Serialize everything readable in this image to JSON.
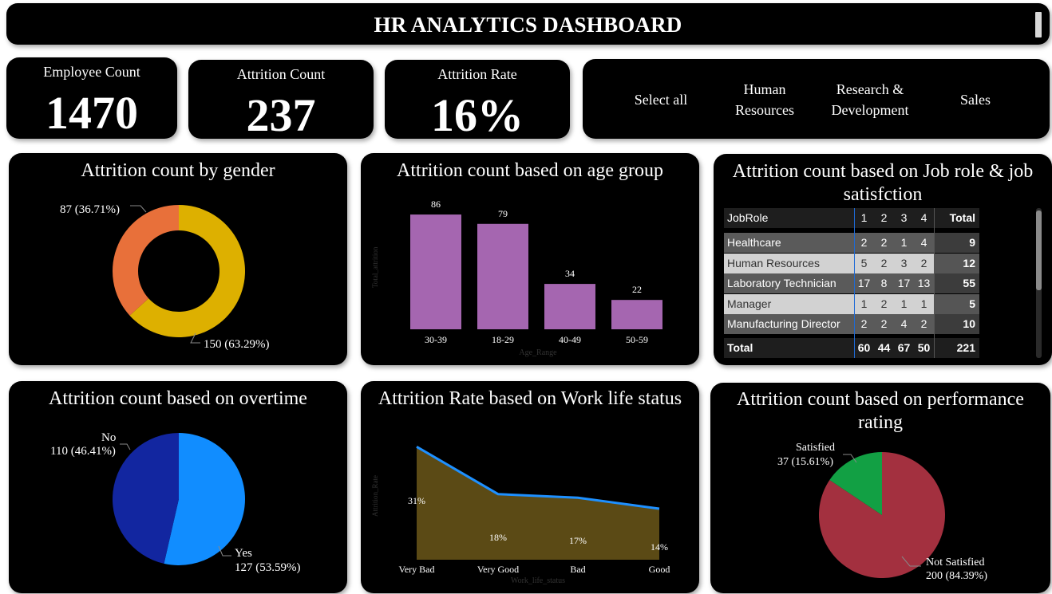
{
  "header": {
    "title": "HR ANALYTICS DASHBOARD"
  },
  "kpis": [
    {
      "label": "Employee Count",
      "value": "1470"
    },
    {
      "label": "Attrition Count",
      "value": "237"
    },
    {
      "label": "Attrition Rate",
      "value": "16%"
    }
  ],
  "slicer": {
    "items": [
      "Select all",
      "Human\nResources",
      "Research &\nDevelopment",
      "Sales"
    ]
  },
  "gender": {
    "title": "Attrition count by gender",
    "labels": [
      "87 (36.71%)",
      "150 (63.29%)"
    ]
  },
  "age": {
    "title": "Attrition count based on age group",
    "xlabel": "Age_Range",
    "ylabel": "Total_attrition"
  },
  "jobrole": {
    "title": "Attrition count based on Job role & job satisfction",
    "headers": [
      "JobRole",
      "1",
      "2",
      "3",
      "4",
      "Total"
    ],
    "rows": [
      [
        "Healthcare Representative",
        "2",
        "2",
        "1",
        "4",
        "9"
      ],
      [
        "Human Resources",
        "5",
        "2",
        "3",
        "2",
        "12"
      ],
      [
        "Laboratory Technician",
        "17",
        "8",
        "17",
        "13",
        "55"
      ],
      [
        "Manager",
        "1",
        "2",
        "1",
        "1",
        "5"
      ],
      [
        "Manufacturing Director",
        "2",
        "2",
        "4",
        "2",
        "10"
      ]
    ],
    "total": [
      "Total",
      "60",
      "44",
      "67",
      "50",
      "221"
    ]
  },
  "overtime": {
    "title": "Attrition count based on overtime",
    "labels": [
      "No",
      "110 (46.41%)",
      "Yes",
      "127 (53.59%)"
    ]
  },
  "worklife": {
    "title": "Attrition Rate based on Work life status",
    "xlabel": "Work_life_status",
    "ylabel": "Attrition_Rate"
  },
  "performance": {
    "title": "Attrition count based on performance rating",
    "labels": [
      "Satisfied",
      "37 (15.61%)",
      "Not Satisfied",
      "200 (84.39%)"
    ]
  },
  "colors": {
    "orange": "#E8703A",
    "gold": "#DDB000",
    "purple": "#A566B0",
    "navy": "#1226A0",
    "blue": "#118DFF",
    "area": "#5B4A15",
    "line": "#1E90FF",
    "green": "#12A044",
    "red": "#A3303F"
  },
  "chart_data": [
    {
      "type": "pie",
      "title": "Attrition count by gender",
      "donut": true,
      "values": [
        87,
        150
      ],
      "percent_labels": [
        "36.71%",
        "63.29%"
      ]
    },
    {
      "type": "bar",
      "title": "Attrition count based on age group",
      "categories": [
        "30-39",
        "18-29",
        "40-49",
        "50-59"
      ],
      "values": [
        86,
        79,
        34,
        22
      ],
      "xlabel": "Age_Range",
      "ylabel": "Total_attrition",
      "ylim": [
        0,
        95
      ]
    },
    {
      "type": "table",
      "title": "Attrition count based on Job role & job satisfction"
    },
    {
      "type": "pie",
      "title": "Attrition count based on overtime",
      "categories": [
        "No",
        "Yes"
      ],
      "values": [
        110,
        127
      ],
      "percent_labels": [
        "46.41%",
        "53.59%"
      ]
    },
    {
      "type": "area",
      "title": "Attrition Rate based on Work life status",
      "categories": [
        "Very Bad",
        "Very Good",
        "Bad",
        "Good"
      ],
      "values": [
        31,
        18,
        17,
        14
      ],
      "data_labels": [
        "31%",
        "18%",
        "17%",
        "14%"
      ],
      "xlabel": "Work_life_status",
      "ylabel": "Attrition_Rate",
      "ylim": [
        0,
        35
      ]
    },
    {
      "type": "pie",
      "title": "Attrition count based on performance rating",
      "categories": [
        "Satisfied",
        "Not Satisfied"
      ],
      "values": [
        37,
        200
      ],
      "percent_labels": [
        "15.61%",
        "84.39%"
      ]
    }
  ]
}
